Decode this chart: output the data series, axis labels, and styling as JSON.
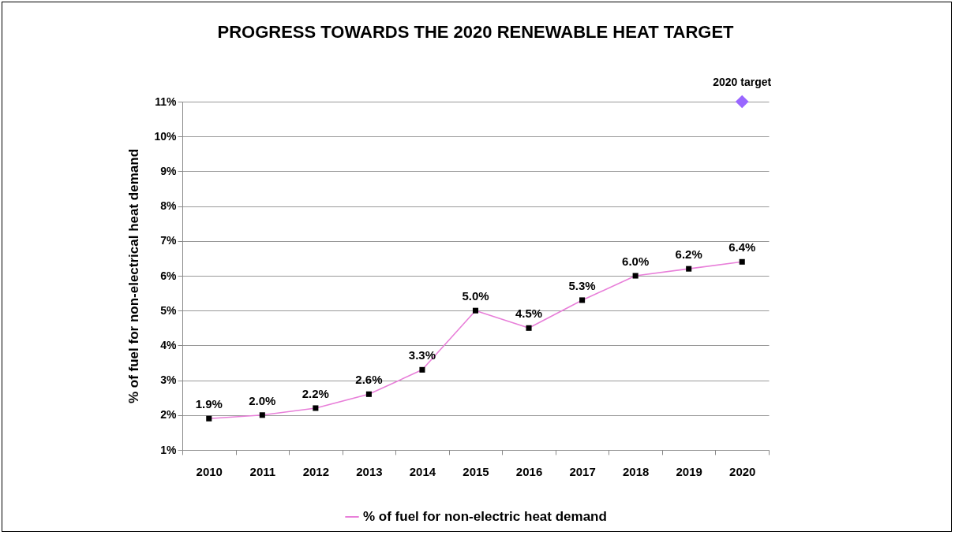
{
  "chart_data": {
    "type": "line",
    "title": "PROGRESS TOWARDS THE 2020 RENEWABLE HEAT TARGET",
    "ylabel": "% of fuel for non-electrical heat demand",
    "categories": [
      "2010",
      "2011",
      "2012",
      "2013",
      "2014",
      "2015",
      "2016",
      "2017",
      "2018",
      "2019",
      "2020"
    ],
    "series": [
      {
        "name": "% of fuel for non-electric heat demand",
        "color": "#e87fd9",
        "colors": [
          "#000000",
          "#000000",
          "#000000",
          "#000000",
          "#000000",
          "#000000",
          "#000000",
          "#000000",
          "#000000",
          "#000000",
          "#000000"
        ],
        "marker": "square",
        "values": [
          1.9,
          2.0,
          2.2,
          2.6,
          3.3,
          5.0,
          4.5,
          5.3,
          6.0,
          6.2,
          6.4
        ],
        "value_labels": [
          "1.9%",
          "2.0%",
          "2.2%",
          "2.6%",
          "3.3%",
          "5.0%",
          "4.5%",
          "5.3%",
          "6.0%",
          "6.2%",
          "6.4%"
        ]
      },
      {
        "type": "scatter",
        "color": "#9966ff",
        "marker": "diamond",
        "values": [
          null,
          null,
          null,
          null,
          null,
          null,
          null,
          null,
          null,
          null,
          11
        ]
      }
    ],
    "annotations": [
      {
        "text": "2020 target",
        "x": "2020",
        "y": 11
      }
    ],
    "ylim": [
      1,
      11
    ],
    "yticks": [
      {
        "value": 1,
        "label": "1%"
      },
      {
        "value": 2,
        "label": "2%"
      },
      {
        "value": 3,
        "label": "3%"
      },
      {
        "value": 4,
        "label": "4%"
      },
      {
        "value": 5,
        "label": "5%"
      },
      {
        "value": 6,
        "label": "6%"
      },
      {
        "value": 7,
        "label": "7%"
      },
      {
        "value": 8,
        "label": "8%"
      },
      {
        "value": 9,
        "label": "9%"
      },
      {
        "value": 10,
        "label": "10%"
      },
      {
        "value": 11,
        "label": "11%"
      }
    ],
    "grid": "y",
    "legend": "bottom"
  }
}
